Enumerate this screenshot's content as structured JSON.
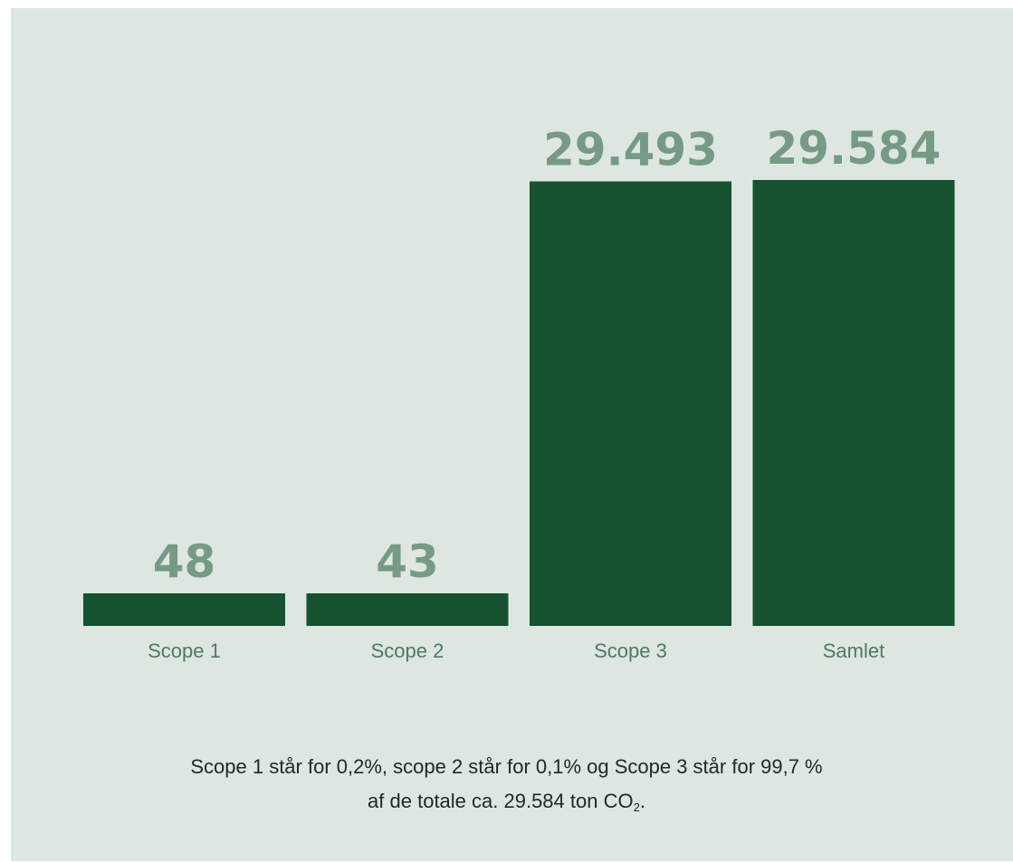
{
  "colors": {
    "background": "#dde6e1",
    "bar": "#165230",
    "value_label": "#769a84",
    "tick_label": "#4f7a61",
    "caption_text": "#1d2a24"
  },
  "chart_data": {
    "type": "bar",
    "categories": [
      "Scope 1",
      "Scope 2",
      "Scope 3",
      "Samlet"
    ],
    "values": [
      48,
      43,
      29493,
      29584
    ],
    "value_labels": [
      "48",
      "43",
      "29.493",
      "29.584"
    ],
    "grid": false,
    "legend": "none"
  },
  "caption": {
    "line1": "Scope 1 står for 0,2%, scope 2 står for 0,1% og Scope 3 står for 99,7 %",
    "line2_prefix": "af de totale ca. 29.584 ton CO",
    "line2_subscript": "2",
    "line2_suffix": "."
  }
}
